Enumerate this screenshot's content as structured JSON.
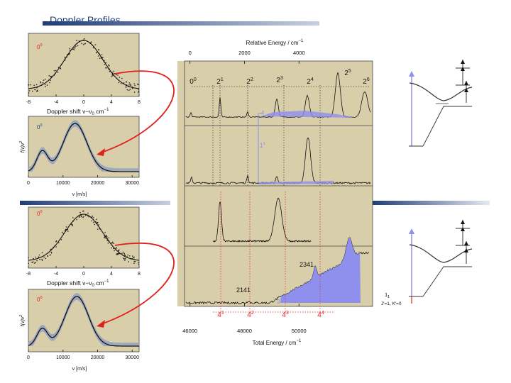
{
  "slide": {
    "title": "Doppler Profiles"
  },
  "chart_data": [
    {
      "id": "doppler-top",
      "type": "line",
      "peak_label": "0",
      "peak_superscript": "0",
      "xlabel": "Doppler shift ν−ν",
      "xlabel_sub": "0",
      "xlabel_unit": " cm",
      "xlabel_sup": "−1",
      "xticks": [
        "-8",
        "-4",
        "0",
        "4",
        "8"
      ],
      "xlim": [
        -8,
        8
      ],
      "fwhm": 6.5
    },
    {
      "id": "speed-top",
      "type": "line",
      "peak_label": "0",
      "peak_superscript": "0",
      "xlabel": "v [m/s]",
      "ylabel": "f(v)v",
      "ylabel_sup": "2",
      "xticks": [
        "0",
        "10000",
        "20000",
        "30000"
      ],
      "xlim": [
        0,
        32000
      ],
      "peaks": [
        {
          "x": 4000,
          "y": 0.42
        },
        {
          "x": 13500,
          "y": 1.0
        }
      ]
    },
    {
      "id": "doppler-bottom",
      "type": "line",
      "peak_label": "0",
      "peak_superscript": "0",
      "xlabel": "Doppler shift ν−ν",
      "xlabel_sub": "0",
      "xlabel_unit": " cm",
      "xlabel_sup": "−1",
      "xticks": [
        "-8",
        "-4",
        "0",
        "4",
        "8"
      ],
      "xlim": [
        -8,
        8
      ],
      "fwhm": 6.5
    },
    {
      "id": "speed-bottom",
      "type": "line",
      "peak_label": "0",
      "peak_superscript": "0",
      "xlabel": "v [m/s]",
      "ylabel": "f(v)v",
      "ylabel_sup": "2",
      "xticks": [
        "0",
        "10000",
        "20000",
        "30000"
      ],
      "xlim": [
        0,
        32000
      ],
      "peaks": [
        {
          "x": 4000,
          "y": 0.35
        },
        {
          "x": 14000,
          "y": 1.0
        }
      ]
    },
    {
      "id": "spectra",
      "type": "line",
      "top_axis": {
        "label": "Relative Energy / cm",
        "label_sup": "−1",
        "ticks": [
          "0",
          "2000",
          "4000"
        ],
        "xlim": [
          -200,
          6700
        ]
      },
      "bottom_axis": {
        "label": "Total Energy / cm",
        "label_sup": "−1",
        "ticks": [
          "46000",
          "48000",
          "50000"
        ],
        "xlim": [
          45800,
          52700
        ]
      },
      "progression_labels": [
        {
          "base": "0",
          "sup": "0",
          "x": 0
        },
        {
          "base": "2",
          "sup": "1",
          "x": 1250
        },
        {
          "base": "2",
          "sup": "2",
          "x": 2300
        },
        {
          "base": "2",
          "sup": "3",
          "x": 3280
        },
        {
          "base": "2",
          "sup": "4",
          "x": 4350
        },
        {
          "base": "2",
          "sup": "5",
          "x": 5450
        },
        {
          "base": "2",
          "sup": "6",
          "x": 6450
        }
      ],
      "bottom_labels": [
        {
          "base": "4",
          "sup": "1",
          "x": 47000
        },
        {
          "base": "4",
          "sup": "2",
          "x": 48100
        },
        {
          "base": "4",
          "sup": "3",
          "x": 49200
        },
        {
          "base": "4",
          "sup": "4",
          "x": 50200
        }
      ],
      "annotations": [
        {
          "base": "2",
          "sup": "1",
          "base2": "4",
          "sup2": "1",
          "x": 48200
        },
        {
          "base": "2",
          "sup": "3",
          "base2": "4",
          "sup2": "1",
          "x": 49750
        },
        {
          "base": "3",
          "sup": "1",
          "x": 49100
        },
        {
          "base": "4",
          "sup": "",
          "x": 2000
        },
        {
          "base": "1",
          "sup": "1",
          "x": 1950
        }
      ]
    }
  ],
  "energy_diagrams": {
    "bottom_label_1": "1",
    "bottom_label_1_sub": "1",
    "bottom_label_2": "J′=1, K′=0"
  },
  "colors": {
    "panel_bg": "#d9ceaa",
    "accent": "#1f3c78",
    "fill": "#8f8fee",
    "red": "#e0201a",
    "band": "#9ea9bd"
  }
}
